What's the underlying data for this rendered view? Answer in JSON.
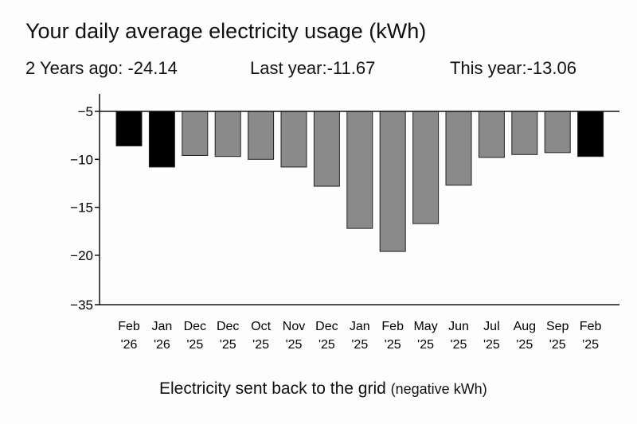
{
  "chart_data": {
    "type": "bar",
    "title": "Your daily average electricity usage (kWh)",
    "summary": [
      {
        "label": "2 Years ago: -24.14"
      },
      {
        "label": "Last year:-11.67"
      },
      {
        "label": "This year:-13.06"
      }
    ],
    "xlabel": "Electricity sent back to the grid",
    "xlabel_unit": "(negative kWh)",
    "ylabel": "",
    "y_ticks": [
      "-5",
      "-10",
      "-15",
      "-20",
      "-35"
    ],
    "ylim": [
      -35,
      -5
    ],
    "y_axis_break": "between -20 and -35",
    "grid": false,
    "categories": [
      [
        "Feb",
        "'26"
      ],
      [
        "Jan",
        "'26"
      ],
      [
        "Dec",
        "'25"
      ],
      [
        "Dec",
        "'25"
      ],
      [
        "Oct",
        "'25"
      ],
      [
        "Nov",
        "'25"
      ],
      [
        "Dec",
        "'25"
      ],
      [
        "Jan",
        "'25"
      ],
      [
        "Feb",
        "'25"
      ],
      [
        "May",
        "'25"
      ],
      [
        "Jun",
        "'25"
      ],
      [
        "Jul",
        "'25"
      ],
      [
        "Aug",
        "'25"
      ],
      [
        "Sep",
        "'25"
      ],
      [
        "Feb",
        "'25"
      ]
    ],
    "values": [
      -8.6,
      -10.8,
      -9.6,
      -9.7,
      -10.0,
      -10.8,
      -12.8,
      -17.2,
      -19.6,
      -16.7,
      -12.7,
      -9.8,
      -9.5,
      -9.3,
      -9.7
    ],
    "highlighted": [
      true,
      true,
      false,
      false,
      false,
      false,
      false,
      false,
      false,
      false,
      false,
      false,
      false,
      false,
      true
    ],
    "colors": {
      "highlight": "#000000",
      "normal": "#8a8a8a",
      "outline": "#222222"
    }
  }
}
